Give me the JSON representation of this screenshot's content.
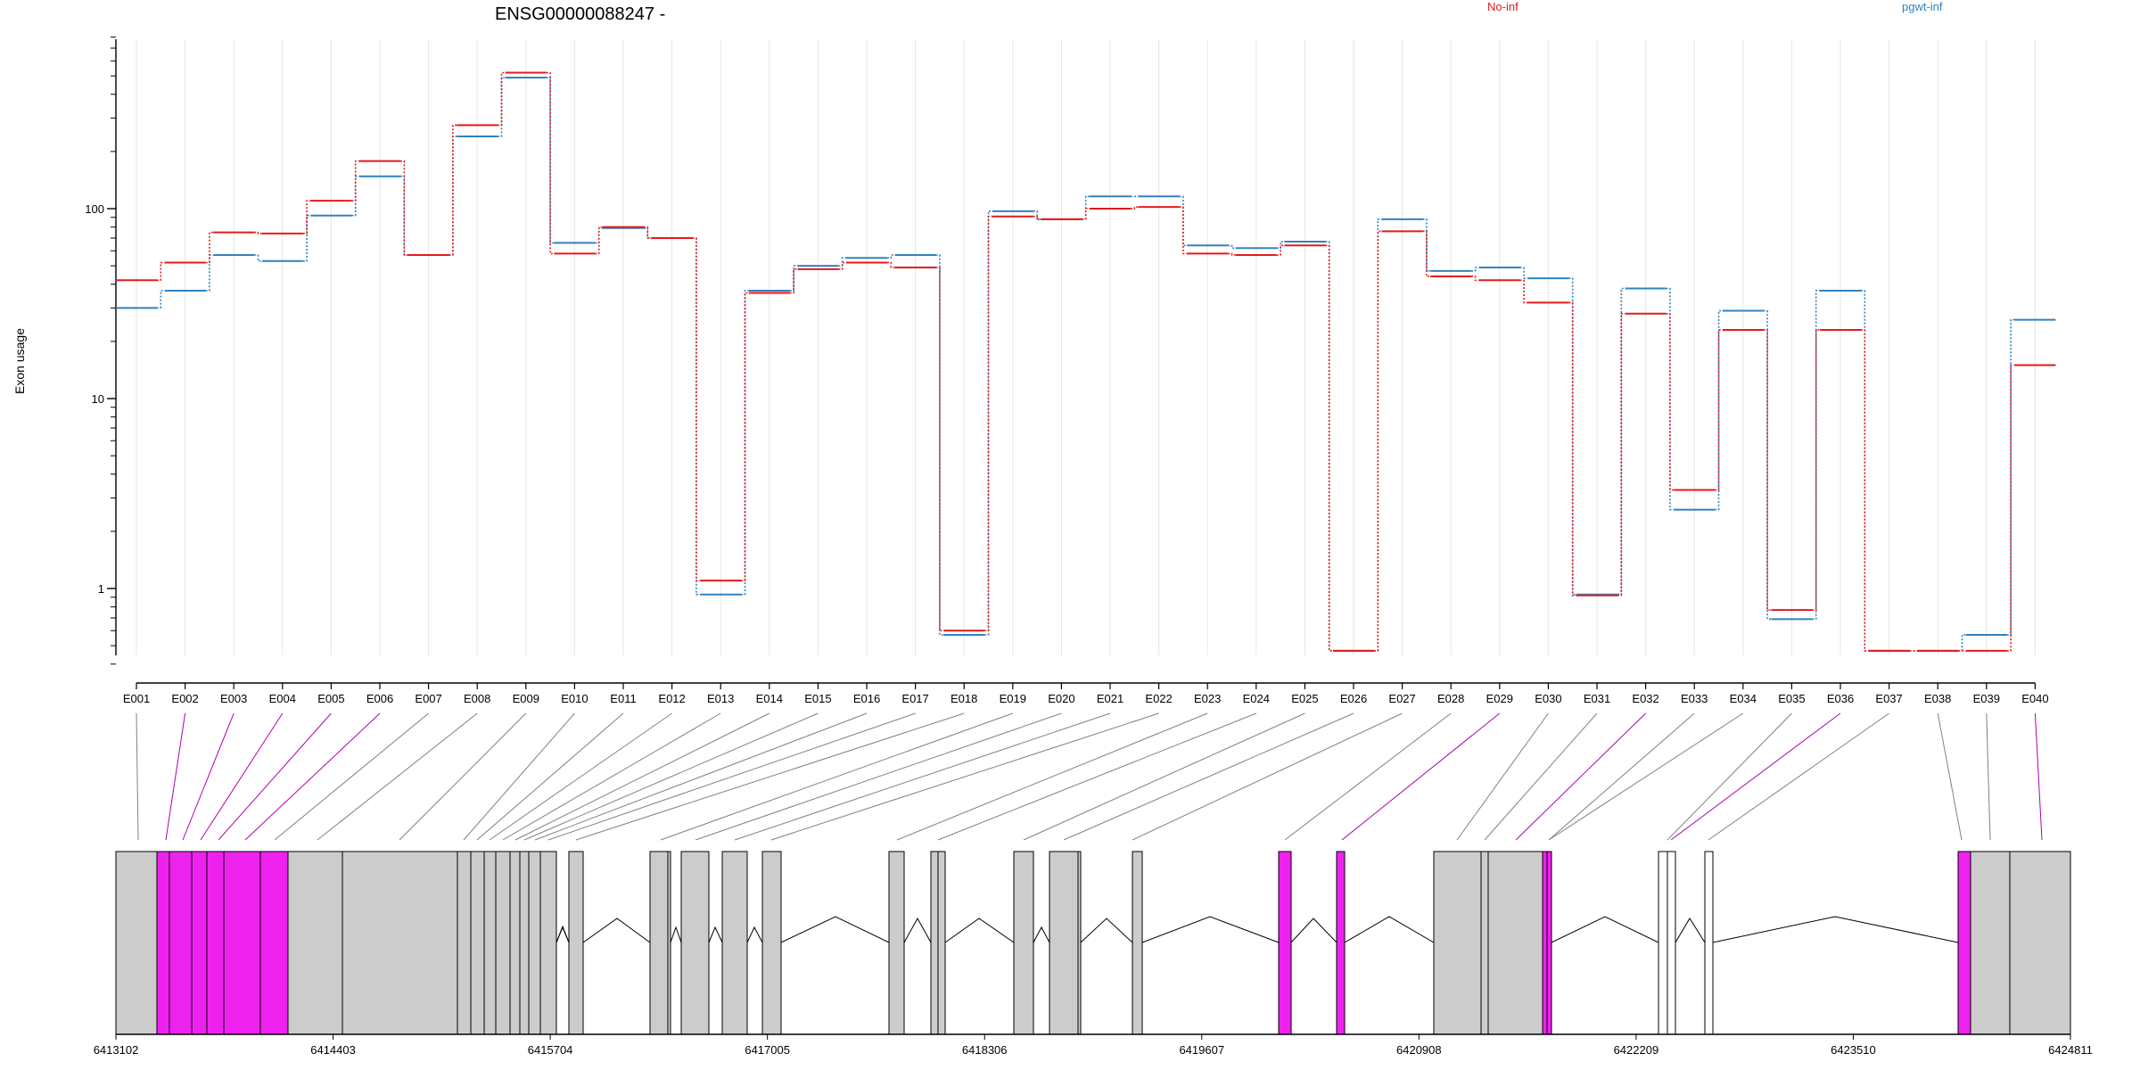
{
  "chart_data": {
    "type": "line",
    "title": "ENSG00000088247 -",
    "ylabel": "Exon usage",
    "xlabel": "",
    "yscale": "log",
    "ylim": [
      0.4,
      800
    ],
    "yticks": [
      "1",
      "10",
      "100"
    ],
    "grid": "vertical",
    "legend_position": "top-right",
    "categories": [
      "E001",
      "E002",
      "E003",
      "E004",
      "E005",
      "E006",
      "E007",
      "E008",
      "E009",
      "E010",
      "E011",
      "E012",
      "E013",
      "E014",
      "E015",
      "E016",
      "E017",
      "E018",
      "E019",
      "E020",
      "E021",
      "E022",
      "E023",
      "E024",
      "E025",
      "E026",
      "E027",
      "E028",
      "E029",
      "E030",
      "E031",
      "E032",
      "E033",
      "E034",
      "E035",
      "E036",
      "E037",
      "E038",
      "E039",
      "E040"
    ],
    "series": [
      {
        "name": "No-inf",
        "color": "#e31a1c",
        "values": [
          42,
          52,
          75,
          74,
          110,
          178,
          57,
          275,
          520,
          58,
          80,
          70,
          1.1,
          36,
          48,
          52,
          49,
          0.6,
          91,
          88,
          100,
          102,
          58,
          57,
          64,
          0.47,
          76,
          44,
          42,
          32,
          0.92,
          28,
          3.3,
          23,
          0.77,
          23,
          0.47,
          0.47,
          0.47,
          15
        ]
      },
      {
        "name": "pgwt-inf",
        "color": "#3182bd",
        "values": [
          30,
          37,
          57,
          53,
          92,
          148,
          57,
          240,
          490,
          66,
          79,
          70,
          0.93,
          37,
          50,
          55,
          57,
          0.57,
          97,
          88,
          116,
          116,
          64,
          62,
          67,
          0.47,
          88,
          47,
          49,
          43,
          0.93,
          38,
          2.6,
          29,
          0.69,
          37,
          0.47,
          0.47,
          0.57,
          26
        ]
      }
    ],
    "gene_model": {
      "start": 6413102,
      "end": 6424811,
      "ticks": [
        "6413102",
        "6414403",
        "6415704",
        "6417005",
        "6418306",
        "6419607",
        "6420908",
        "6422209",
        "6423510",
        "6424811"
      ],
      "highlighted_exons": [
        "E002",
        "E003",
        "E004",
        "E005",
        "E006",
        "E029",
        "E032",
        "E036",
        "E040"
      ],
      "colors": {
        "exon": "#cccccc",
        "highlight": "#ee22ee",
        "intron": "#000000",
        "connector": "#808080",
        "highlight_connector": "#b000b0",
        "noncoding": "#ffffff"
      }
    }
  }
}
